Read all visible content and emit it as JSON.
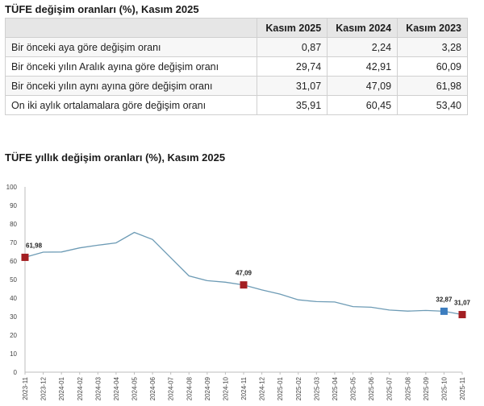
{
  "table": {
    "title": "TÜFE değişim oranları (%), Kasım 2025",
    "columns": [
      "Kasım 2025",
      "Kasım 2024",
      "Kasım 2023"
    ],
    "rows": [
      {
        "label": "Bir önceki aya göre değişim oranı",
        "values": [
          "0,87",
          "2,24",
          "3,28"
        ]
      },
      {
        "label": "Bir önceki yılın Aralık ayına göre değişim oranı",
        "values": [
          "29,74",
          "42,91",
          "60,09"
        ]
      },
      {
        "label": "Bir önceki yılın aynı ayına göre değişim oranı",
        "values": [
          "31,07",
          "47,09",
          "61,98"
        ]
      },
      {
        "label": "On iki aylık ortalamalara göre değişim oranı",
        "values": [
          "35,91",
          "60,45",
          "53,40"
        ]
      }
    ]
  },
  "chart_data": {
    "type": "line",
    "title": "TÜFE yıllık değişim oranları (%), Kasım 2025",
    "xlabel": "",
    "ylabel": "",
    "ylim": [
      0,
      100
    ],
    "yticks": [
      0,
      10,
      20,
      30,
      40,
      50,
      60,
      70,
      80,
      90,
      100
    ],
    "x": [
      "2023-11",
      "2023-12",
      "2024-01",
      "2024-02",
      "2024-03",
      "2024-04",
      "2024-05",
      "2024-06",
      "2024-07",
      "2024-08",
      "2024-09",
      "2024-10",
      "2024-11",
      "2024-12",
      "2025-01",
      "2025-02",
      "2025-03",
      "2025-04",
      "2025-05",
      "2025-06",
      "2025-07",
      "2025-08",
      "2025-09",
      "2025-10",
      "2025-11"
    ],
    "series": [
      {
        "name": "TÜFE yıllık değişim",
        "color": "#6d9bb5",
        "values": [
          61.98,
          64.77,
          64.86,
          67.07,
          68.5,
          69.8,
          75.45,
          71.6,
          61.8,
          51.97,
          49.38,
          48.58,
          47.09,
          44.38,
          42.12,
          39.05,
          38.1,
          37.86,
          35.41,
          35.05,
          33.52,
          32.95,
          33.29,
          32.87,
          31.07
        ]
      }
    ],
    "markers": [
      {
        "index": 0,
        "label": "61,98",
        "color": "#a31e22"
      },
      {
        "index": 12,
        "label": "47,09",
        "color": "#a31e22"
      },
      {
        "index": 23,
        "label": "32,87",
        "color": "#3c7dbf"
      },
      {
        "index": 24,
        "label": "31,07",
        "color": "#a31e22"
      }
    ],
    "grid": false,
    "legend": "none"
  }
}
